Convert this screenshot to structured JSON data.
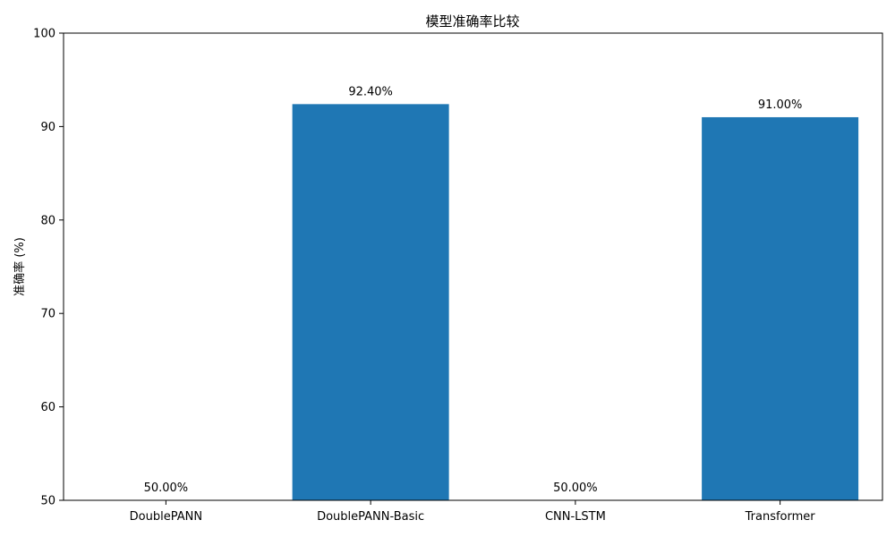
{
  "chart_data": {
    "type": "bar",
    "title": "模型准确率比较",
    "xlabel": "",
    "ylabel": "准确率 (%)",
    "categories": [
      "DoublePANN",
      "DoublePANN-Basic",
      "CNN-LSTM",
      "Transformer"
    ],
    "values": [
      50.0,
      92.4,
      50.0,
      91.0
    ],
    "data_labels": [
      "50.00%",
      "92.40%",
      "50.00%",
      "91.00%"
    ],
    "ylim": [
      50,
      100
    ],
    "yticks": [
      50,
      60,
      70,
      80,
      90,
      100
    ],
    "grid": false,
    "legend": "none",
    "bar_color": "#1f77b4"
  }
}
